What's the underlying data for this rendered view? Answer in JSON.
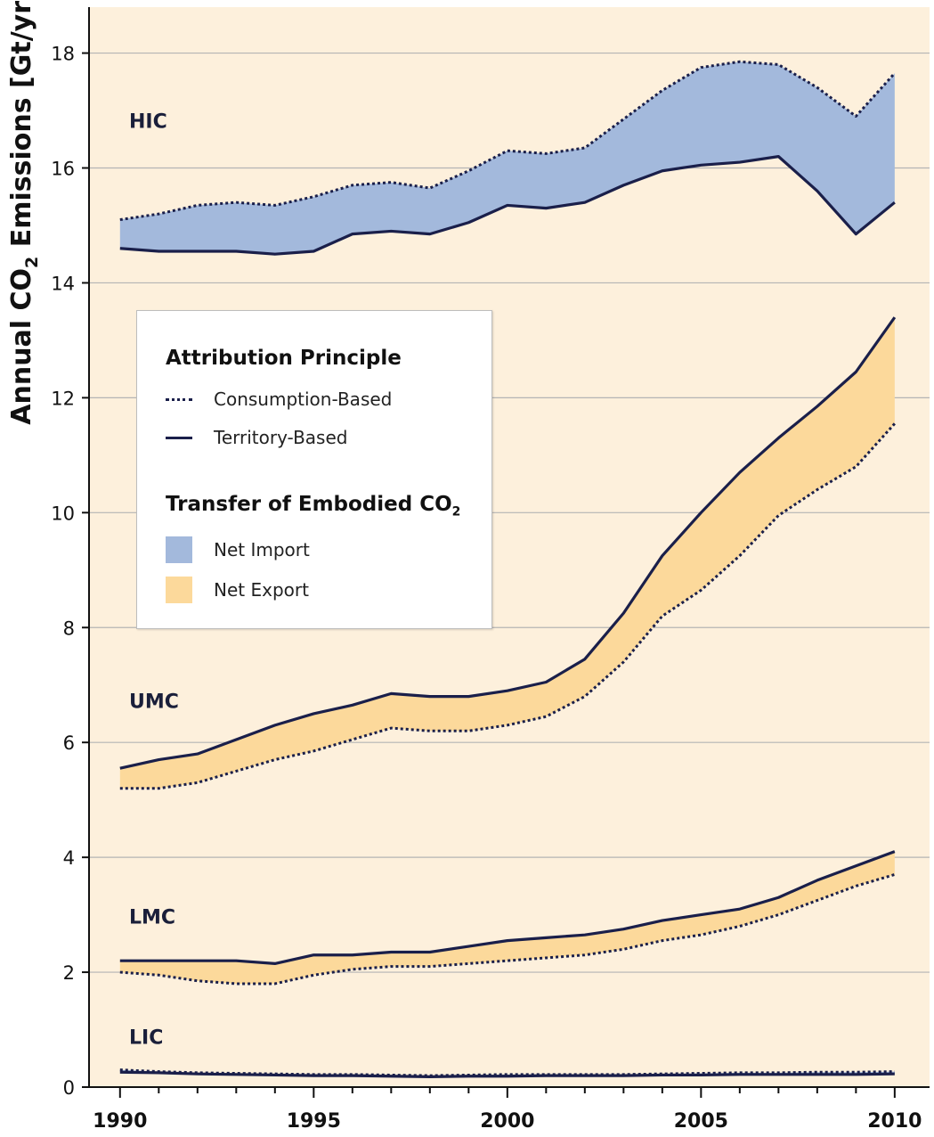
{
  "chart_data": {
    "type": "area",
    "ylabel": "Annual CO",
    "ylabel_sub": "2",
    "ylabel_tail": " Emissions [Gt/yr]",
    "ylim": [
      0,
      18.8
    ],
    "xlim": [
      1989.2,
      2010.9
    ],
    "yticks": [
      0,
      2,
      4,
      6,
      8,
      10,
      12,
      14,
      16,
      18
    ],
    "xticks": [
      1990,
      1995,
      2000,
      2005,
      2010
    ],
    "grid": true,
    "x": [
      1990,
      1991,
      1992,
      1993,
      1994,
      1995,
      1996,
      1997,
      1998,
      1999,
      2000,
      2001,
      2002,
      2003,
      2004,
      2005,
      2006,
      2007,
      2008,
      2009,
      2010
    ],
    "colors": {
      "net_import": "#a3b9dc",
      "net_export": "#fcd99b",
      "line": "#1a1f4a",
      "background": "#fdf0dc",
      "grid": "#b4b4b4"
    },
    "groups": [
      {
        "name": "HIC",
        "transfer": "Net Import",
        "consumption": [
          15.1,
          15.2,
          15.35,
          15.4,
          15.35,
          15.5,
          15.7,
          15.75,
          15.65,
          15.95,
          16.3,
          16.25,
          16.35,
          16.85,
          17.35,
          17.75,
          17.85,
          17.8,
          17.4,
          16.9,
          17.65
        ],
        "territory": [
          14.6,
          14.55,
          14.55,
          14.55,
          14.5,
          14.55,
          14.85,
          14.9,
          14.85,
          15.05,
          15.35,
          15.3,
          15.4,
          15.7,
          15.95,
          16.05,
          16.1,
          16.2,
          15.6,
          14.85,
          15.4
        ]
      },
      {
        "name": "UMC",
        "transfer": "Net Export",
        "consumption": [
          5.2,
          5.2,
          5.3,
          5.5,
          5.7,
          5.85,
          6.05,
          6.25,
          6.2,
          6.2,
          6.3,
          6.45,
          6.8,
          7.4,
          8.2,
          8.65,
          9.25,
          9.95,
          10.4,
          10.8,
          11.55
        ],
        "territory": [
          5.55,
          5.7,
          5.8,
          6.05,
          6.3,
          6.5,
          6.65,
          6.85,
          6.8,
          6.8,
          6.9,
          7.05,
          7.45,
          8.25,
          9.25,
          10.0,
          10.7,
          11.3,
          11.85,
          12.45,
          13.4
        ]
      },
      {
        "name": "LMC",
        "transfer": "Net Export",
        "consumption": [
          2.0,
          1.95,
          1.85,
          1.8,
          1.8,
          1.95,
          2.05,
          2.1,
          2.1,
          2.15,
          2.2,
          2.25,
          2.3,
          2.4,
          2.55,
          2.65,
          2.8,
          3.0,
          3.25,
          3.5,
          3.7
        ],
        "territory": [
          2.2,
          2.2,
          2.2,
          2.2,
          2.15,
          2.3,
          2.3,
          2.35,
          2.35,
          2.45,
          2.55,
          2.6,
          2.65,
          2.75,
          2.9,
          3.0,
          3.1,
          3.3,
          3.6,
          3.85,
          4.1
        ]
      },
      {
        "name": "LIC",
        "transfer": "Net Import",
        "consumption": [
          0.3,
          0.27,
          0.25,
          0.24,
          0.23,
          0.22,
          0.22,
          0.21,
          0.2,
          0.21,
          0.22,
          0.22,
          0.22,
          0.22,
          0.23,
          0.24,
          0.25,
          0.25,
          0.26,
          0.26,
          0.27
        ],
        "territory": [
          0.26,
          0.25,
          0.23,
          0.22,
          0.21,
          0.2,
          0.2,
          0.19,
          0.18,
          0.19,
          0.19,
          0.2,
          0.2,
          0.2,
          0.21,
          0.21,
          0.22,
          0.22,
          0.22,
          0.22,
          0.23
        ]
      }
    ],
    "legend": {
      "heading1": "Attribution Principle",
      "consumption_label": "Consumption-Based",
      "territory_label": "Territory-Based",
      "heading2": "Transfer of Embodied CO",
      "heading2_sub": "2",
      "import_label": "Net Import",
      "export_label": "Net Export",
      "placement": "center-left"
    }
  }
}
